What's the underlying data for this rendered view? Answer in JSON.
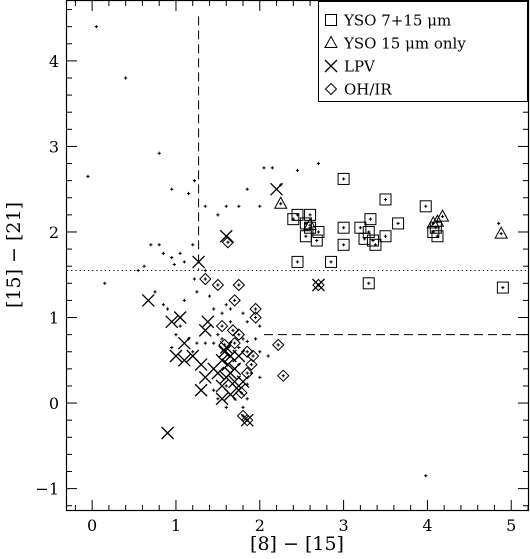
{
  "chart_data": {
    "type": "scatter",
    "xlabel": "[8] − [15]",
    "ylabel": "[15] − [21]",
    "xlim": [
      -0.3,
      5.2
    ],
    "ylim": [
      -1.25,
      4.7
    ],
    "xticks": [
      0,
      1,
      2,
      3,
      4,
      5
    ],
    "yticks": [
      -1,
      0,
      1,
      2,
      3,
      4
    ],
    "xtick_labels": [
      "0",
      "1",
      "2",
      "3",
      "4",
      "5"
    ],
    "ytick_labels": [
      "−1",
      "0",
      "1",
      "2",
      "3",
      "4"
    ],
    "legend": {
      "position": "top-right",
      "entries": [
        {
          "marker": "square",
          "label": "YSO 7+15 μm"
        },
        {
          "marker": "triangle",
          "label": "YSO 15 μm only"
        },
        {
          "marker": "cross",
          "label": "LPV"
        },
        {
          "marker": "diamond",
          "label": "OH/IR"
        }
      ]
    },
    "reference_lines": [
      {
        "style": "dashed",
        "points": [
          [
            1.27,
            4.52
          ],
          [
            1.27,
            1.55
          ]
        ]
      },
      {
        "style": "dashed",
        "points": [
          [
            2.05,
            0.8
          ],
          [
            5.2,
            0.8
          ]
        ]
      },
      {
        "style": "dotted",
        "points": [
          [
            -0.3,
            1.55
          ],
          [
            5.2,
            1.55
          ]
        ]
      }
    ],
    "series": [
      {
        "marker": "square",
        "points": [
          [
            2.4,
            2.15
          ],
          [
            2.45,
            2.2
          ],
          [
            2.55,
            2.1
          ],
          [
            2.6,
            2.2
          ],
          [
            2.6,
            2.05
          ],
          [
            2.68,
            1.9
          ],
          [
            2.55,
            1.95
          ],
          [
            2.7,
            2.0
          ],
          [
            2.45,
            1.65
          ],
          [
            2.85,
            1.65
          ],
          [
            3.0,
            2.62
          ],
          [
            3.0,
            2.05
          ],
          [
            3.0,
            1.85
          ],
          [
            3.2,
            2.05
          ],
          [
            3.25,
            1.92
          ],
          [
            3.3,
            2.0
          ],
          [
            3.32,
            2.15
          ],
          [
            3.38,
            1.85
          ],
          [
            3.35,
            1.9
          ],
          [
            3.5,
            1.95
          ],
          [
            3.5,
            2.38
          ],
          [
            3.65,
            2.1
          ],
          [
            3.3,
            1.4
          ],
          [
            3.98,
            2.3
          ],
          [
            4.07,
            2.0
          ],
          [
            4.1,
            2.05
          ],
          [
            4.12,
            1.95
          ],
          [
            4.9,
            1.35
          ]
        ]
      },
      {
        "marker": "triangle",
        "points": [
          [
            2.25,
            2.33
          ],
          [
            2.6,
            2.08
          ],
          [
            4.07,
            2.1
          ],
          [
            4.12,
            2.12
          ],
          [
            4.18,
            2.18
          ],
          [
            4.88,
            1.98
          ]
        ]
      },
      {
        "marker": "cross",
        "points": [
          [
            2.2,
            2.5
          ],
          [
            1.27,
            1.65
          ],
          [
            1.6,
            1.95
          ],
          [
            0.67,
            1.2
          ],
          [
            1.05,
            1.0
          ],
          [
            0.95,
            0.95
          ],
          [
            1.1,
            0.7
          ],
          [
            1.38,
            0.95
          ],
          [
            1.35,
            0.85
          ],
          [
            1.0,
            0.55
          ],
          [
            1.1,
            0.5
          ],
          [
            1.2,
            0.55
          ],
          [
            1.3,
            0.45
          ],
          [
            1.35,
            0.3
          ],
          [
            1.3,
            0.15
          ],
          [
            1.45,
            0.4
          ],
          [
            1.5,
            0.35
          ],
          [
            1.55,
            0.5
          ],
          [
            1.58,
            0.6
          ],
          [
            1.6,
            0.65
          ],
          [
            1.65,
            0.55
          ],
          [
            1.55,
            0.2
          ],
          [
            1.6,
            0.3
          ],
          [
            1.65,
            0.35
          ],
          [
            1.62,
            0.45
          ],
          [
            1.7,
            0.4
          ],
          [
            1.7,
            0.25
          ],
          [
            1.75,
            0.15
          ],
          [
            1.8,
            0.25
          ],
          [
            1.85,
            -0.2
          ],
          [
            1.55,
            0.05
          ],
          [
            1.65,
            0.1
          ],
          [
            0.9,
            -0.35
          ],
          [
            2.7,
            1.38
          ],
          [
            1.75,
            0.55
          ]
        ]
      },
      {
        "marker": "diamond",
        "points": [
          [
            1.62,
            1.88
          ],
          [
            1.35,
            1.45
          ],
          [
            1.5,
            1.38
          ],
          [
            1.75,
            1.38
          ],
          [
            1.7,
            1.2
          ],
          [
            1.95,
            1.1
          ],
          [
            1.95,
            1.0
          ],
          [
            1.55,
            0.9
          ],
          [
            1.68,
            0.85
          ],
          [
            1.75,
            0.8
          ],
          [
            1.7,
            0.7
          ],
          [
            1.85,
            0.6
          ],
          [
            1.92,
            0.55
          ],
          [
            1.9,
            0.45
          ],
          [
            1.85,
            0.35
          ],
          [
            1.78,
            0.12
          ],
          [
            1.8,
            -0.15
          ],
          [
            1.85,
            -0.2
          ],
          [
            2.22,
            0.68
          ],
          [
            2.28,
            0.32
          ],
          [
            2.7,
            1.38
          ],
          [
            1.58,
            0.68
          ]
        ]
      },
      {
        "marker": "dot",
        "points": [
          [
            -0.05,
            2.65
          ],
          [
            0.05,
            4.4
          ],
          [
            0.4,
            3.8
          ],
          [
            0.8,
            2.92
          ],
          [
            0.95,
            2.5
          ],
          [
            1.15,
            2.45
          ],
          [
            1.22,
            2.6
          ],
          [
            1.35,
            2.3
          ],
          [
            1.5,
            2.2
          ],
          [
            1.6,
            2.3
          ],
          [
            1.75,
            2.3
          ],
          [
            1.85,
            2.5
          ],
          [
            2.0,
            2.3
          ],
          [
            2.05,
            2.75
          ],
          [
            2.15,
            2.75
          ],
          [
            2.45,
            2.72
          ],
          [
            2.7,
            2.8
          ],
          [
            2.25,
            2.55
          ],
          [
            0.7,
            1.85
          ],
          [
            0.8,
            1.85
          ],
          [
            0.85,
            1.75
          ],
          [
            0.95,
            1.7
          ],
          [
            0.98,
            1.62
          ],
          [
            1.05,
            1.75
          ],
          [
            1.1,
            1.65
          ],
          [
            1.2,
            1.85
          ],
          [
            0.15,
            1.4
          ],
          [
            0.55,
            1.55
          ],
          [
            0.62,
            1.6
          ],
          [
            0.75,
            1.3
          ],
          [
            0.85,
            1.15
          ],
          [
            0.9,
            1.1
          ],
          [
            1.0,
            0.8
          ],
          [
            1.05,
            0.9
          ],
          [
            1.1,
            1.2
          ],
          [
            1.15,
            0.75
          ],
          [
            0.95,
            0.65
          ],
          [
            1.25,
            1.3
          ],
          [
            1.4,
            1.25
          ],
          [
            1.45,
            1.1
          ],
          [
            1.55,
            1.05
          ],
          [
            1.6,
            1.15
          ],
          [
            1.65,
            1.1
          ],
          [
            1.8,
            1.05
          ],
          [
            1.85,
            0.95
          ],
          [
            2.0,
            0.9
          ],
          [
            1.95,
            0.75
          ],
          [
            1.8,
            0.75
          ],
          [
            1.65,
            0.95
          ],
          [
            1.5,
            0.8
          ],
          [
            1.45,
            0.7
          ],
          [
            1.35,
            0.7
          ],
          [
            1.2,
            0.6
          ],
          [
            1.25,
            0.7
          ],
          [
            1.55,
            0.75
          ],
          [
            1.75,
            0.65
          ],
          [
            1.85,
            0.72
          ],
          [
            2.0,
            0.6
          ],
          [
            1.9,
            0.35
          ],
          [
            2.0,
            0.3
          ],
          [
            1.75,
            0.45
          ],
          [
            1.6,
            0.2
          ],
          [
            1.45,
            0.15
          ],
          [
            1.5,
            0.05
          ],
          [
            1.7,
            0.05
          ],
          [
            1.85,
            0.05
          ],
          [
            1.8,
            -0.05
          ],
          [
            1.6,
            -0.05
          ],
          [
            1.85,
            0.22
          ],
          [
            4.85,
            2.1
          ],
          [
            3.98,
            -0.85
          ],
          [
            2.1,
            0.55
          ],
          [
            1.35,
            1.55
          ],
          [
            1.22,
            1.45
          ]
        ]
      }
    ]
  }
}
